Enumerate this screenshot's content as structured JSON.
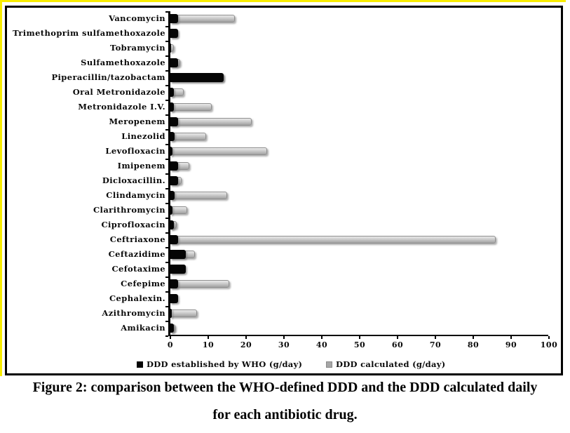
{
  "figure": {
    "caption_line1": "Figure 2: comparison between the WHO-defined DDD and the DDD calculated daily",
    "caption_line2": "for each antibiotic drug."
  },
  "legend": {
    "who_label": "DDD established by WHO (g/day)",
    "calculated_label": "DDD calculated (g/day)"
  },
  "colors": {
    "who_bar": "#050505",
    "calculated_bar": "#ababab",
    "highlight_border": "#f8ec00",
    "chart_border": "#000000"
  },
  "chart_data": {
    "type": "bar",
    "orientation": "horizontal",
    "title": "",
    "xlabel": "",
    "ylabel": "",
    "xlim": [
      0,
      100
    ],
    "xticks": [
      0,
      10,
      20,
      30,
      40,
      50,
      60,
      70,
      80,
      90,
      100
    ],
    "grid": false,
    "legend_position": "bottom",
    "categories": [
      "Vancomycin",
      "Trimethoprim sulfamethoxazole",
      "Tobramycin",
      "Sulfamethoxazole",
      "Piperacillin/tazobactam",
      "Oral Metronidazole",
      "Metronidazole I.V.",
      "Meropenem",
      "Linezolid",
      "Levofloxacin",
      "Imipenem",
      "Dicloxacillin.",
      "Clindamycin",
      "Clarithromycin",
      "Ciprofloxacin",
      "Ceftriaxone",
      "Ceftazidime",
      "Cefotaxime",
      "Cefepime",
      "Cephalexin.",
      "Azithromycin",
      "Amikacin"
    ],
    "series": [
      {
        "name": "DDD established by WHO (g/day)",
        "color": "#050505",
        "values": [
          2,
          2,
          0.24,
          2,
          14,
          1,
          1,
          2,
          1.2,
          0.5,
          2,
          2,
          1.2,
          0.5,
          1,
          2,
          4,
          4,
          2,
          2,
          0.3,
          1
        ]
      },
      {
        "name": "DDD calculated (g/day)",
        "color": "#ababab",
        "values": [
          17,
          1.9,
          1,
          2.5,
          14,
          3.5,
          11,
          21.5,
          9.5,
          25.5,
          5,
          3,
          15,
          4.5,
          1.6,
          86,
          6.5,
          3.5,
          15.5,
          1,
          7,
          1.3
        ]
      }
    ]
  }
}
